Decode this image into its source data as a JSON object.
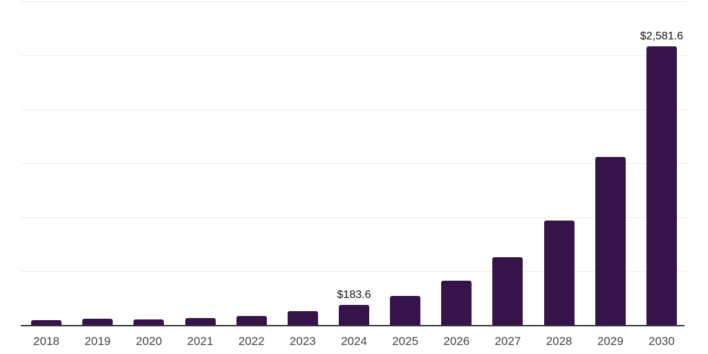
{
  "chart_data": {
    "type": "bar",
    "categories": [
      "2018",
      "2019",
      "2020",
      "2021",
      "2022",
      "2023",
      "2024",
      "2025",
      "2026",
      "2027",
      "2028",
      "2029",
      "2030"
    ],
    "values": [
      46,
      58,
      49,
      64,
      85,
      128,
      183.6,
      272,
      413,
      626,
      971,
      1560,
      2581.6
    ],
    "data_labels": [
      "",
      "",
      "",
      "",
      "",
      "",
      "$183.6",
      "",
      "",
      "",
      "",
      "",
      "$2,581.6"
    ],
    "ylim": [
      0,
      3000
    ],
    "gridline_interval": 500,
    "grid": "horizontal-only",
    "legend": "none",
    "y_tick_labels": "none",
    "colors": {
      "bar": "#361349",
      "axis_line": "#333333",
      "gridline": "#ededed",
      "x_tick_label": "#444444",
      "data_label": "#121212",
      "background": "#ffffff"
    }
  }
}
